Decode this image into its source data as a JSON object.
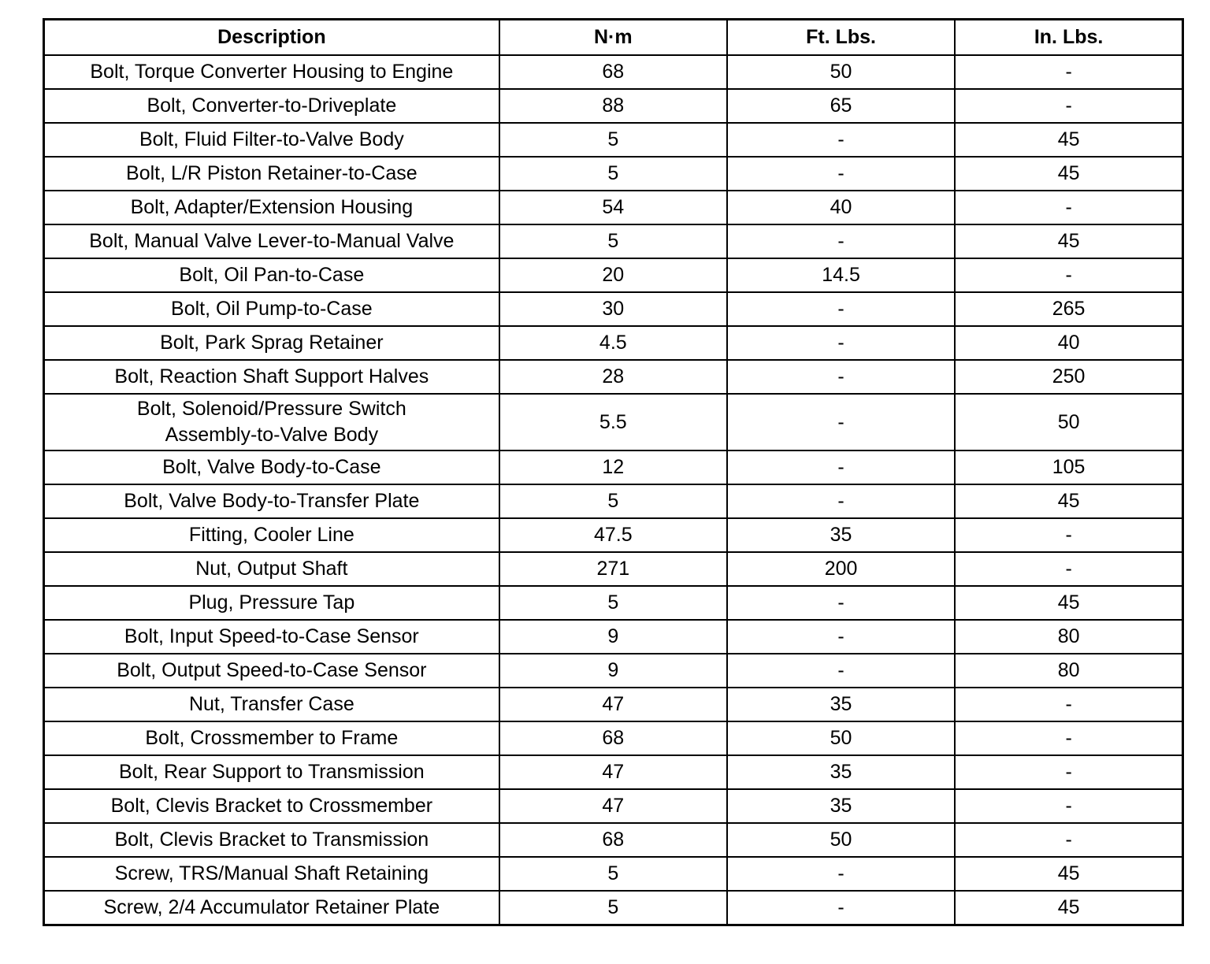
{
  "headers": [
    "Description",
    "N·m",
    "Ft. Lbs.",
    "In. Lbs."
  ],
  "rows": [
    [
      "Bolt, Torque Converter Housing to Engine",
      "68",
      "50",
      "-"
    ],
    [
      "Bolt, Converter-to-Driveplate",
      "88",
      "65",
      "-"
    ],
    [
      "Bolt, Fluid Filter-to-Valve Body",
      "5",
      "-",
      "45"
    ],
    [
      "Bolt, L/R Piston Retainer-to-Case",
      "5",
      "-",
      "45"
    ],
    [
      "Bolt, Adapter/Extension Housing",
      "54",
      "40",
      "-"
    ],
    [
      "Bolt, Manual Valve Lever-to-Manual Valve",
      "5",
      "-",
      "45"
    ],
    [
      "Bolt, Oil Pan-to-Case",
      "20",
      "14.5",
      "-"
    ],
    [
      "Bolt, Oil Pump-to-Case",
      "30",
      "-",
      "265"
    ],
    [
      "Bolt, Park Sprag Retainer",
      "4.5",
      "-",
      "40"
    ],
    [
      "Bolt, Reaction Shaft Support Halves",
      "28",
      "-",
      "250"
    ],
    [
      "Bolt, Solenoid/Pressure Switch Assembly-to-Valve Body",
      "5.5",
      "-",
      "50"
    ],
    [
      "Bolt, Valve Body-to-Case",
      "12",
      "-",
      "105"
    ],
    [
      "Bolt, Valve Body-to-Transfer Plate",
      "5",
      "-",
      "45"
    ],
    [
      "Fitting, Cooler Line",
      "47.5",
      "35",
      "-"
    ],
    [
      "Nut, Output Shaft",
      "271",
      "200",
      "-"
    ],
    [
      "Plug, Pressure Tap",
      "5",
      "-",
      "45"
    ],
    [
      "Bolt, Input Speed-to-Case Sensor",
      "9",
      "-",
      "80"
    ],
    [
      "Bolt, Output Speed-to-Case Sensor",
      "9",
      "-",
      "80"
    ],
    [
      "Nut, Transfer Case",
      "47",
      "35",
      "-"
    ],
    [
      "Bolt, Crossmember to Frame",
      "68",
      "50",
      "-"
    ],
    [
      "Bolt, Rear Support to Transmission",
      "47",
      "35",
      "-"
    ],
    [
      "Bolt, Clevis Bracket to Crossmember",
      "47",
      "35",
      "-"
    ],
    [
      "Bolt, Clevis Bracket to Transmission",
      "68",
      "50",
      "-"
    ],
    [
      "Screw, TRS/Manual Shaft Retaining",
      "5",
      "-",
      "45"
    ],
    [
      "Screw, 2/4 Accumulator Retainer Plate",
      "5",
      "-",
      "45"
    ]
  ]
}
